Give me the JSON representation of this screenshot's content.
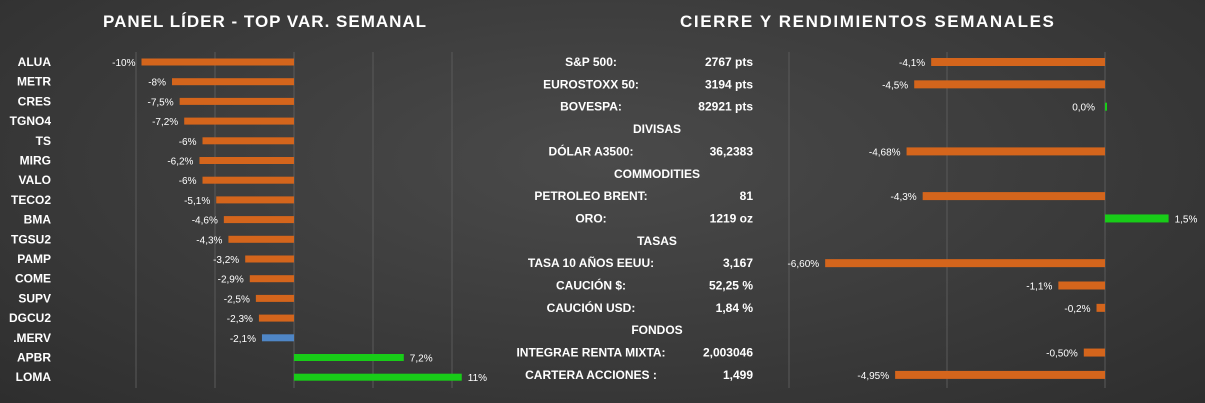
{
  "left_panel": {
    "title": "PANEL LÍDER - TOP VAR. SEMANAL"
  },
  "right_panel": {
    "title": "CIERRE Y RENDIMIENTOS  SEMANALES"
  },
  "colors": {
    "negative": "#d4651c",
    "positive": "#18cc18",
    "index": "#4f86c6",
    "grid": "#5a5a5a",
    "text": "#ffffff"
  },
  "chart_data": [
    {
      "type": "bar",
      "orientation": "horizontal",
      "title": "PANEL LÍDER - TOP VAR. SEMANAL",
      "categories": [
        "ALUA",
        "METR",
        "CRES",
        "TGNO4",
        "TS",
        "MIRG",
        "VALO",
        "TECO2",
        "BMA",
        "TGSU2",
        "PAMP",
        "COME",
        "SUPV",
        "DGCU2",
        ".MERV",
        "APBR",
        "LOMA"
      ],
      "values": [
        -10,
        -8,
        -7.5,
        -7.2,
        -6,
        -6.2,
        -6,
        -5.1,
        -4.6,
        -4.3,
        -3.2,
        -2.9,
        -2.5,
        -2.3,
        -2.1,
        7.2,
        11
      ],
      "data_labels": [
        "-10%",
        "-8%",
        "-7,5%",
        "-7,2%",
        "-6%",
        "-6,2%",
        "-6%",
        "-5,1%",
        "-4,6%",
        "-4,3%",
        "-3,2%",
        "-2,9%",
        "-2,5%",
        "-2,3%",
        "-2,1%",
        "7,2%",
        "11%"
      ],
      "xlim": [
        -10,
        11
      ],
      "grid": true,
      "legend": "none"
    },
    {
      "type": "table",
      "title": "CIERRE Y RENDIMIENTOS  SEMANALES",
      "rows": [
        {
          "kind": "item",
          "name": "S&P 500:",
          "close": "2767 pts",
          "change": -4.1,
          "label": "-4,1%"
        },
        {
          "kind": "item",
          "name": "EUROSTOXX 50:",
          "close": "3194 pts",
          "change": -4.5,
          "label": "-4,5%"
        },
        {
          "kind": "item",
          "name": "BOVESPA:",
          "close": "82921 pts",
          "change": 0.0,
          "label": "0,0%"
        },
        {
          "kind": "header",
          "name": "DIVISAS"
        },
        {
          "kind": "item",
          "name": "DÓLAR A3500:",
          "close": "36,2383",
          "change": -4.68,
          "label": "-4,68%"
        },
        {
          "kind": "header",
          "name": "COMMODITIES"
        },
        {
          "kind": "item",
          "name": "PETROLEO BRENT:",
          "close": "81",
          "change": -4.3,
          "label": "-4,3%"
        },
        {
          "kind": "item",
          "name": "ORO:",
          "close": "1219 oz",
          "change": 1.5,
          "label": "1,5%"
        },
        {
          "kind": "header",
          "name": "TASAS"
        },
        {
          "kind": "item",
          "name": "TASA 10 AÑOS EEUU:",
          "close": "3,167",
          "change": -6.6,
          "label": "-6,60%"
        },
        {
          "kind": "item",
          "name": "CAUCIÓN $:",
          "close": "52,25 %",
          "change": -1.1,
          "label": "-1,1%"
        },
        {
          "kind": "item",
          "name": "CAUCIÓN USD:",
          "close": "1,84 %",
          "change": -0.2,
          "label": "-0,2%"
        },
        {
          "kind": "header",
          "name": "FONDOS"
        },
        {
          "kind": "item",
          "name": "INTEGRAE RENTA MIXTA:",
          "close": "2,003046",
          "change": -0.5,
          "label": "-0,50%"
        },
        {
          "kind": "item",
          "name": "CARTERA ACCIONES :",
          "close": "1,499",
          "change": -4.95,
          "label": "-4,95%"
        }
      ],
      "xlim": [
        -6.6,
        1.5
      ],
      "grid": true,
      "legend": "none"
    }
  ]
}
